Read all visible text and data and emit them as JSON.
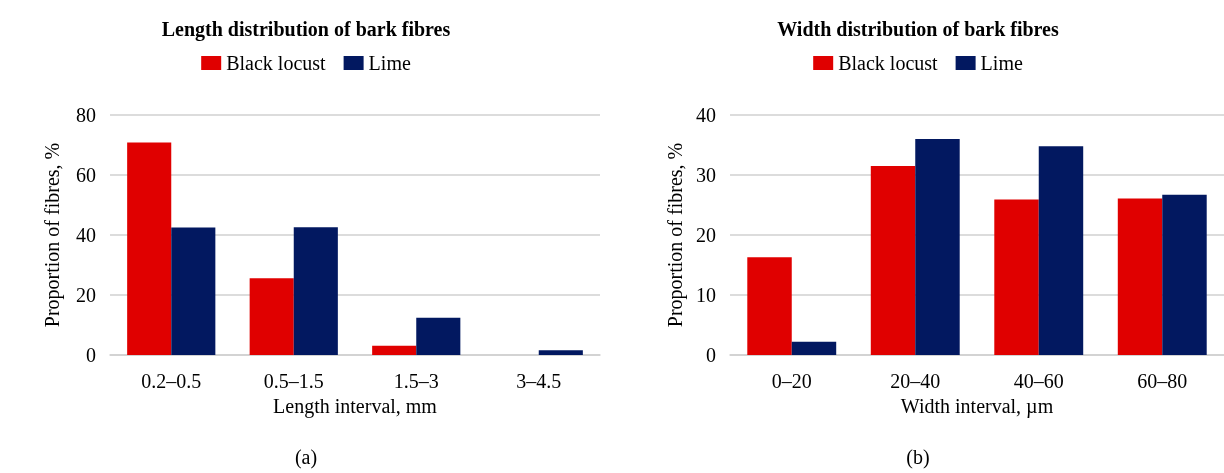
{
  "chart_data": [
    {
      "type": "bar",
      "title": "Length distribution of bark fibres",
      "xlabel": "Length interval, mm",
      "ylabel": "Proportion of fibres, %",
      "categories": [
        "0.2–0.5",
        "0.5–1.5",
        "1.5–3",
        "3–4.5"
      ],
      "series": [
        {
          "name": "Black locust",
          "color": "#e00000",
          "values": [
            70.8,
            25.6,
            3.1,
            0
          ]
        },
        {
          "name": "Lime",
          "color": "#021860",
          "values": [
            42.5,
            42.6,
            12.4,
            1.6
          ]
        }
      ],
      "ylim": [
        0,
        80
      ],
      "yticks": [
        0,
        20,
        40,
        60,
        80
      ],
      "grid": "y",
      "legend": "top",
      "annotations": [
        "(a)"
      ]
    },
    {
      "type": "bar",
      "title": "Width distribution of bark fibres",
      "xlabel": "Width interval, µm",
      "ylabel": "Proportion of fibres, %",
      "categories": [
        "0–20",
        "20–40",
        "40–60",
        "60–80"
      ],
      "series": [
        {
          "name": "Black locust",
          "color": "#e00000",
          "values": [
            16.3,
            31.5,
            25.9,
            26.1
          ]
        },
        {
          "name": "Lime",
          "color": "#021860",
          "values": [
            2.2,
            36.0,
            34.8,
            26.7
          ]
        }
      ],
      "ylim": [
        0,
        40
      ],
      "yticks": [
        0,
        10,
        20,
        30,
        40
      ],
      "grid": "y",
      "legend": "top",
      "annotations": [
        "(b)"
      ]
    }
  ]
}
